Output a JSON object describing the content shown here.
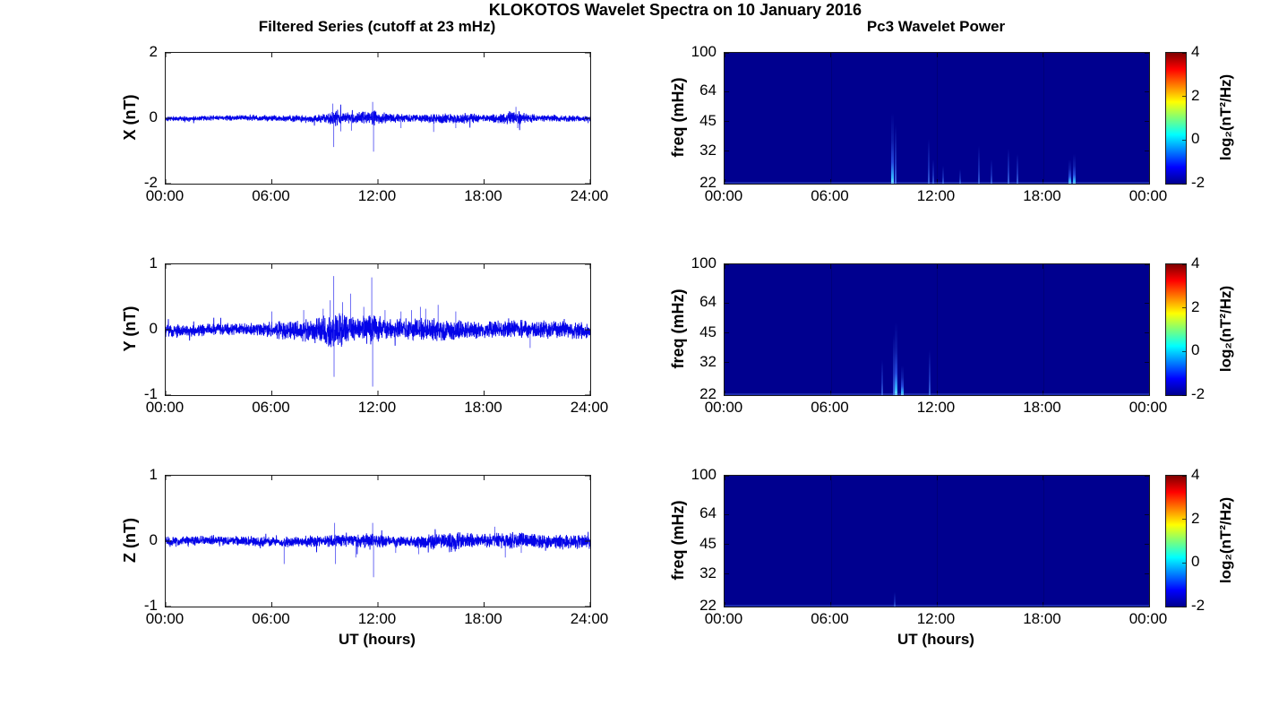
{
  "title": "KLOKOTOS Wavelet Spectra on 10 January 2016",
  "left_column": {
    "title": "Filtered Series (cutoff at 23 mHz)",
    "xlabel": "UT (hours)"
  },
  "right_column": {
    "title": "Pc3 Wavelet Power",
    "xlabel": "UT (hours)"
  },
  "colors": {
    "line_blue": "#0404E8",
    "spike_blue": "#3333F0",
    "heatmap_background": "#00008F",
    "axis": "#1a1a1a",
    "colorbar_jet": [
      "#00008F",
      "#0000FF",
      "#00FFFF",
      "#7CFF79",
      "#FFFF00",
      "#FF0000",
      "#7F0000"
    ]
  },
  "chart_data": [
    {
      "id": "x_filtered",
      "type": "line",
      "row": 0,
      "column": "left",
      "title": "Filtered Series (cutoff at 23 mHz)",
      "ylabel": "X (nT)",
      "ylim": [
        -2,
        2
      ],
      "ytick_values": [
        2,
        0,
        -2
      ],
      "ytick_labels": [
        "2",
        "0",
        "-2"
      ],
      "x_range_hours": [
        0,
        24
      ],
      "xtick_values": [
        0,
        6,
        12,
        18,
        24
      ],
      "xtick_labels": [
        "00:00",
        "06:00",
        "12:00",
        "18:00",
        "24:00"
      ],
      "seed": 11,
      "noise_envelope": [
        [
          0,
          0.05
        ],
        [
          3,
          0.05
        ],
        [
          6,
          0.06
        ],
        [
          8,
          0.07
        ],
        [
          9,
          0.1
        ],
        [
          9.7,
          0.16
        ],
        [
          10.5,
          0.1
        ],
        [
          11,
          0.12
        ],
        [
          11.8,
          0.16
        ],
        [
          12.5,
          0.1
        ],
        [
          14,
          0.08
        ],
        [
          15.5,
          0.1
        ],
        [
          17,
          0.11
        ],
        [
          18,
          0.07
        ],
        [
          19.3,
          0.12
        ],
        [
          20.3,
          0.13
        ],
        [
          21,
          0.07
        ],
        [
          24,
          0.06
        ]
      ],
      "spikes": [
        [
          9.45,
          0.45
        ],
        [
          9.5,
          -0.88
        ],
        [
          9.9,
          -0.4
        ],
        [
          10.5,
          -0.38
        ],
        [
          11.7,
          0.5
        ],
        [
          11.75,
          -1.02
        ],
        [
          13.3,
          -0.3
        ],
        [
          15.15,
          -0.42
        ],
        [
          16.4,
          -0.3
        ],
        [
          19.8,
          0.35
        ],
        [
          19.9,
          -0.3
        ]
      ]
    },
    {
      "id": "y_filtered",
      "type": "line",
      "row": 1,
      "column": "left",
      "ylabel": "Y (nT)",
      "ylim": [
        -1,
        1
      ],
      "ytick_values": [
        1,
        0,
        -1
      ],
      "ytick_labels": [
        "1",
        "0",
        "-1"
      ],
      "x_range_hours": [
        0,
        24
      ],
      "xtick_values": [
        0,
        6,
        12,
        18,
        24
      ],
      "xtick_labels": [
        "00:00",
        "06:00",
        "12:00",
        "18:00",
        "24:00"
      ],
      "seed": 23,
      "noise_envelope": [
        [
          0,
          0.07
        ],
        [
          2,
          0.06
        ],
        [
          5.5,
          0.06
        ],
        [
          6,
          0.09
        ],
        [
          7,
          0.09
        ],
        [
          8.5,
          0.12
        ],
        [
          9.5,
          0.18
        ],
        [
          10,
          0.16
        ],
        [
          10.5,
          0.13
        ],
        [
          11,
          0.12
        ],
        [
          11.7,
          0.17
        ],
        [
          12.2,
          0.12
        ],
        [
          13,
          0.1
        ],
        [
          14,
          0.11
        ],
        [
          15,
          0.12
        ],
        [
          16,
          0.11
        ],
        [
          17,
          0.09
        ],
        [
          18,
          0.08
        ],
        [
          19,
          0.09
        ],
        [
          20,
          0.1
        ],
        [
          21,
          0.09
        ],
        [
          24,
          0.08
        ]
      ],
      "spikes": [
        [
          6.0,
          0.28
        ],
        [
          7.8,
          0.3
        ],
        [
          8.9,
          0.32
        ],
        [
          9.3,
          0.45
        ],
        [
          9.5,
          0.82
        ],
        [
          9.52,
          -0.72
        ],
        [
          10.0,
          0.42
        ],
        [
          10.45,
          0.55
        ],
        [
          11.2,
          0.35
        ],
        [
          11.65,
          0.8
        ],
        [
          11.7,
          -0.87
        ],
        [
          12.4,
          0.3
        ],
        [
          13.3,
          0.28
        ],
        [
          13.9,
          0.3
        ],
        [
          14.4,
          0.35
        ],
        [
          14.7,
          0.32
        ],
        [
          15.4,
          0.38
        ],
        [
          16.4,
          0.28
        ],
        [
          20.6,
          -0.28
        ]
      ]
    },
    {
      "id": "z_filtered",
      "type": "line",
      "row": 2,
      "column": "left",
      "ylabel": "Z (nT)",
      "ylim": [
        -1,
        1
      ],
      "ytick_values": [
        1,
        0,
        -1
      ],
      "ytick_labels": [
        "1",
        "0",
        "-1"
      ],
      "x_range_hours": [
        0,
        24
      ],
      "xtick_values": [
        0,
        6,
        12,
        18,
        24
      ],
      "xtick_labels": [
        "00:00",
        "06:00",
        "12:00",
        "18:00",
        "24:00"
      ],
      "xlabel": "UT (hours)",
      "seed": 37,
      "noise_envelope": [
        [
          0,
          0.05
        ],
        [
          6,
          0.05
        ],
        [
          9,
          0.06
        ],
        [
          11.5,
          0.07
        ],
        [
          12,
          0.06
        ],
        [
          14,
          0.06
        ],
        [
          15,
          0.08
        ],
        [
          16,
          0.1
        ],
        [
          16.8,
          0.09
        ],
        [
          18,
          0.07
        ],
        [
          19,
          0.08
        ],
        [
          20,
          0.08
        ],
        [
          21,
          0.07
        ],
        [
          24,
          0.07
        ]
      ],
      "spikes": [
        [
          6.7,
          -0.35
        ],
        [
          9.55,
          0.28
        ],
        [
          9.6,
          -0.35
        ],
        [
          10.75,
          -0.25
        ],
        [
          11.7,
          0.28
        ],
        [
          11.75,
          -0.55
        ],
        [
          13.0,
          -0.18
        ],
        [
          14.3,
          -0.2
        ],
        [
          18.6,
          0.22
        ],
        [
          19.2,
          -0.25
        ],
        [
          20.1,
          -0.18
        ]
      ]
    },
    {
      "id": "x_wavelet",
      "type": "heatmap",
      "row": 0,
      "column": "right",
      "title": "Pc3 Wavelet Power",
      "ylabel": "freq (mHz)",
      "freq_range_mhz": [
        22,
        100
      ],
      "ytick_values": [
        100,
        64,
        45,
        32,
        22
      ],
      "ytick_labels": [
        "100",
        "64",
        "45",
        "32",
        "22"
      ],
      "x_range_hours": [
        0,
        24
      ],
      "xtick_values": [
        0,
        6,
        12,
        18,
        24
      ],
      "xtick_labels": [
        "00:00",
        "06:00",
        "12:00",
        "18:00",
        "00:00"
      ],
      "background_log2_power": -2,
      "streaks": [
        [
          9.5,
          50,
          0.65
        ],
        [
          9.65,
          43,
          0.5
        ],
        [
          11.55,
          37,
          0.35
        ],
        [
          11.8,
          29,
          0.3
        ],
        [
          12.35,
          27,
          0.25
        ],
        [
          13.3,
          26,
          0.22
        ],
        [
          14.4,
          34,
          0.3
        ],
        [
          15.1,
          29,
          0.25
        ],
        [
          16.05,
          33,
          0.45
        ],
        [
          16.55,
          31,
          0.4
        ],
        [
          19.5,
          29,
          0.75
        ],
        [
          19.75,
          31,
          0.6
        ]
      ],
      "colorbar": {
        "label": "log₂(nT²/Hz)",
        "range": [
          -2,
          4
        ],
        "tick_values": [
          4,
          2,
          0,
          -2
        ],
        "tick_labels": [
          "4",
          "2",
          "0",
          "-2"
        ]
      }
    },
    {
      "id": "y_wavelet",
      "type": "heatmap",
      "row": 1,
      "column": "right",
      "ylabel": "freq (mHz)",
      "freq_range_mhz": [
        22,
        100
      ],
      "ytick_values": [
        100,
        64,
        45,
        32,
        22
      ],
      "ytick_labels": [
        "100",
        "64",
        "45",
        "32",
        "22"
      ],
      "x_range_hours": [
        0,
        24
      ],
      "xtick_values": [
        0,
        6,
        12,
        18,
        24
      ],
      "xtick_labels": [
        "00:00",
        "06:00",
        "12:00",
        "18:00",
        "00:00"
      ],
      "background_log2_power": -2,
      "streaks": [
        [
          8.9,
          33,
          0.35
        ],
        [
          9.55,
          44,
          0.5
        ],
        [
          9.7,
          51,
          0.75
        ],
        [
          10.05,
          31,
          0.55
        ],
        [
          11.6,
          37,
          0.45
        ]
      ],
      "colorbar": {
        "label": "log₂(nT²/Hz)",
        "range": [
          -2,
          4
        ],
        "tick_values": [
          4,
          2,
          0,
          -2
        ],
        "tick_labels": [
          "4",
          "2",
          "0",
          "-2"
        ]
      }
    },
    {
      "id": "z_wavelet",
      "type": "heatmap",
      "row": 2,
      "column": "right",
      "ylabel": "freq (mHz)",
      "freq_range_mhz": [
        22,
        100
      ],
      "ytick_values": [
        100,
        64,
        45,
        32,
        22
      ],
      "ytick_labels": [
        "100",
        "64",
        "45",
        "32",
        "22"
      ],
      "x_range_hours": [
        0,
        24
      ],
      "xtick_values": [
        0,
        6,
        12,
        18,
        24
      ],
      "xtick_labels": [
        "00:00",
        "06:00",
        "12:00",
        "18:00",
        "00:00"
      ],
      "xlabel": "UT (hours)",
      "background_log2_power": -2,
      "streaks": [
        [
          9.6,
          26,
          0.18
        ]
      ],
      "colorbar": {
        "label": "log₂(nT²/Hz)",
        "range": [
          -2,
          4
        ],
        "tick_values": [
          4,
          2,
          0,
          -2
        ],
        "tick_labels": [
          "4",
          "2",
          "0",
          "-2"
        ]
      }
    }
  ]
}
